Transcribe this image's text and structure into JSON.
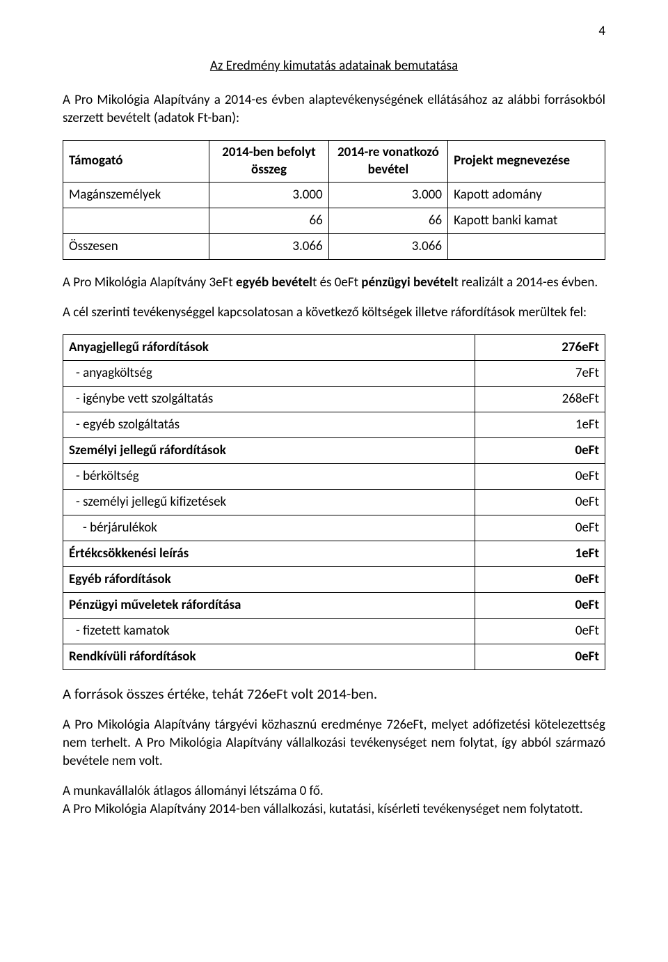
{
  "pageNumber": "4",
  "title": "Az Eredmény kimutatás adatainak bemutatása",
  "intro": "A Pro Mikológia Alapítvány a 2014-es évben alaptevékenységének ellátásához az alábbi forrásokból szerzett bevételt (adatok Ft-ban):",
  "table1": {
    "headers": [
      "Támogató",
      "2014-ben befolyt összeg",
      "2014-re vonatkozó bevétel",
      "Projekt megnevezése"
    ],
    "rows": [
      [
        "Magánszemélyek",
        "3.000",
        "3.000",
        "Kapott adomány"
      ],
      [
        "",
        "66",
        "66",
        "Kapott banki kamat"
      ],
      [
        "Összesen",
        "3.066",
        "3.066",
        ""
      ]
    ],
    "colWidths": [
      "27%",
      "22%",
      "22%",
      "29%"
    ]
  },
  "afterT1a_plain1": "A Pro Mikológia Alapítvány 3eFt ",
  "afterT1a_bold1": "egyéb bevétel",
  "afterT1a_plain2": "t és 0eFt ",
  "afterT1a_bold2": "pénzügyi bevétel",
  "afterT1a_plain3": "t realizált a 2014-es évben.",
  "afterT1b": "A cél szerinti tevékenységgel kapcsolatosan a következő költségek illetve ráfordítások merültek fel:",
  "table2": {
    "rows": [
      {
        "label": "Anyagjellegű ráfordítások",
        "value": "276eFt",
        "bold": true,
        "indent": 0
      },
      {
        "label": "- anyagköltség",
        "value": "7eFt",
        "bold": false,
        "indent": 1
      },
      {
        "label": "- igénybe vett szolgáltatás",
        "value": "268eFt",
        "bold": false,
        "indent": 1
      },
      {
        "label": "- egyéb szolgáltatás",
        "value": "1eFt",
        "bold": false,
        "indent": 1
      },
      {
        "label": "Személyi jellegű ráfordítások",
        "value": "0eFt",
        "bold": true,
        "indent": 0
      },
      {
        "label": "- bérköltség",
        "value": "0eFt",
        "bold": false,
        "indent": 1
      },
      {
        "label": "- személyi jellegű kifizetések",
        "value": "0eFt",
        "bold": false,
        "indent": 1
      },
      {
        "label": "- bérjárulékok",
        "value": "0eFt",
        "bold": false,
        "indent": 2
      },
      {
        "label": "Értékcsökkenési leírás",
        "value": "1eFt",
        "bold": true,
        "indent": 0
      },
      {
        "label": "Egyéb ráfordítások",
        "value": "0eFt",
        "bold": true,
        "indent": 0
      },
      {
        "label": "Pénzügyi műveletek ráfordítása",
        "value": "0eFt",
        "bold": true,
        "indent": 0
      },
      {
        "label": "- fizetett kamatok",
        "value": "0eFt",
        "bold": false,
        "indent": 1
      },
      {
        "label": "Rendkívüli ráfordítások",
        "value": "0eFt",
        "bold": true,
        "indent": 0
      }
    ],
    "colWidths": [
      "76%",
      "24%"
    ]
  },
  "closing": [
    "A források összes értéke, tehát 726eFt volt 2014-ben.",
    "A Pro Mikológia Alapítvány tárgyévi közhasznú eredménye 726eFt, melyet adófizetési kötelezettség nem terhelt. A Pro Mikológia Alapítvány vállalkozási tevékenységet nem folytat, így abból származó bevétele nem volt.",
    "A munkavállalók átlagos állományi létszáma 0 fő.",
    "A Pro Mikológia Alapítvány 2014-ben vállalkozási, kutatási, kísérleti tevékenységet nem folytatott."
  ],
  "closingBigFont": [
    true,
    false,
    false,
    false
  ]
}
